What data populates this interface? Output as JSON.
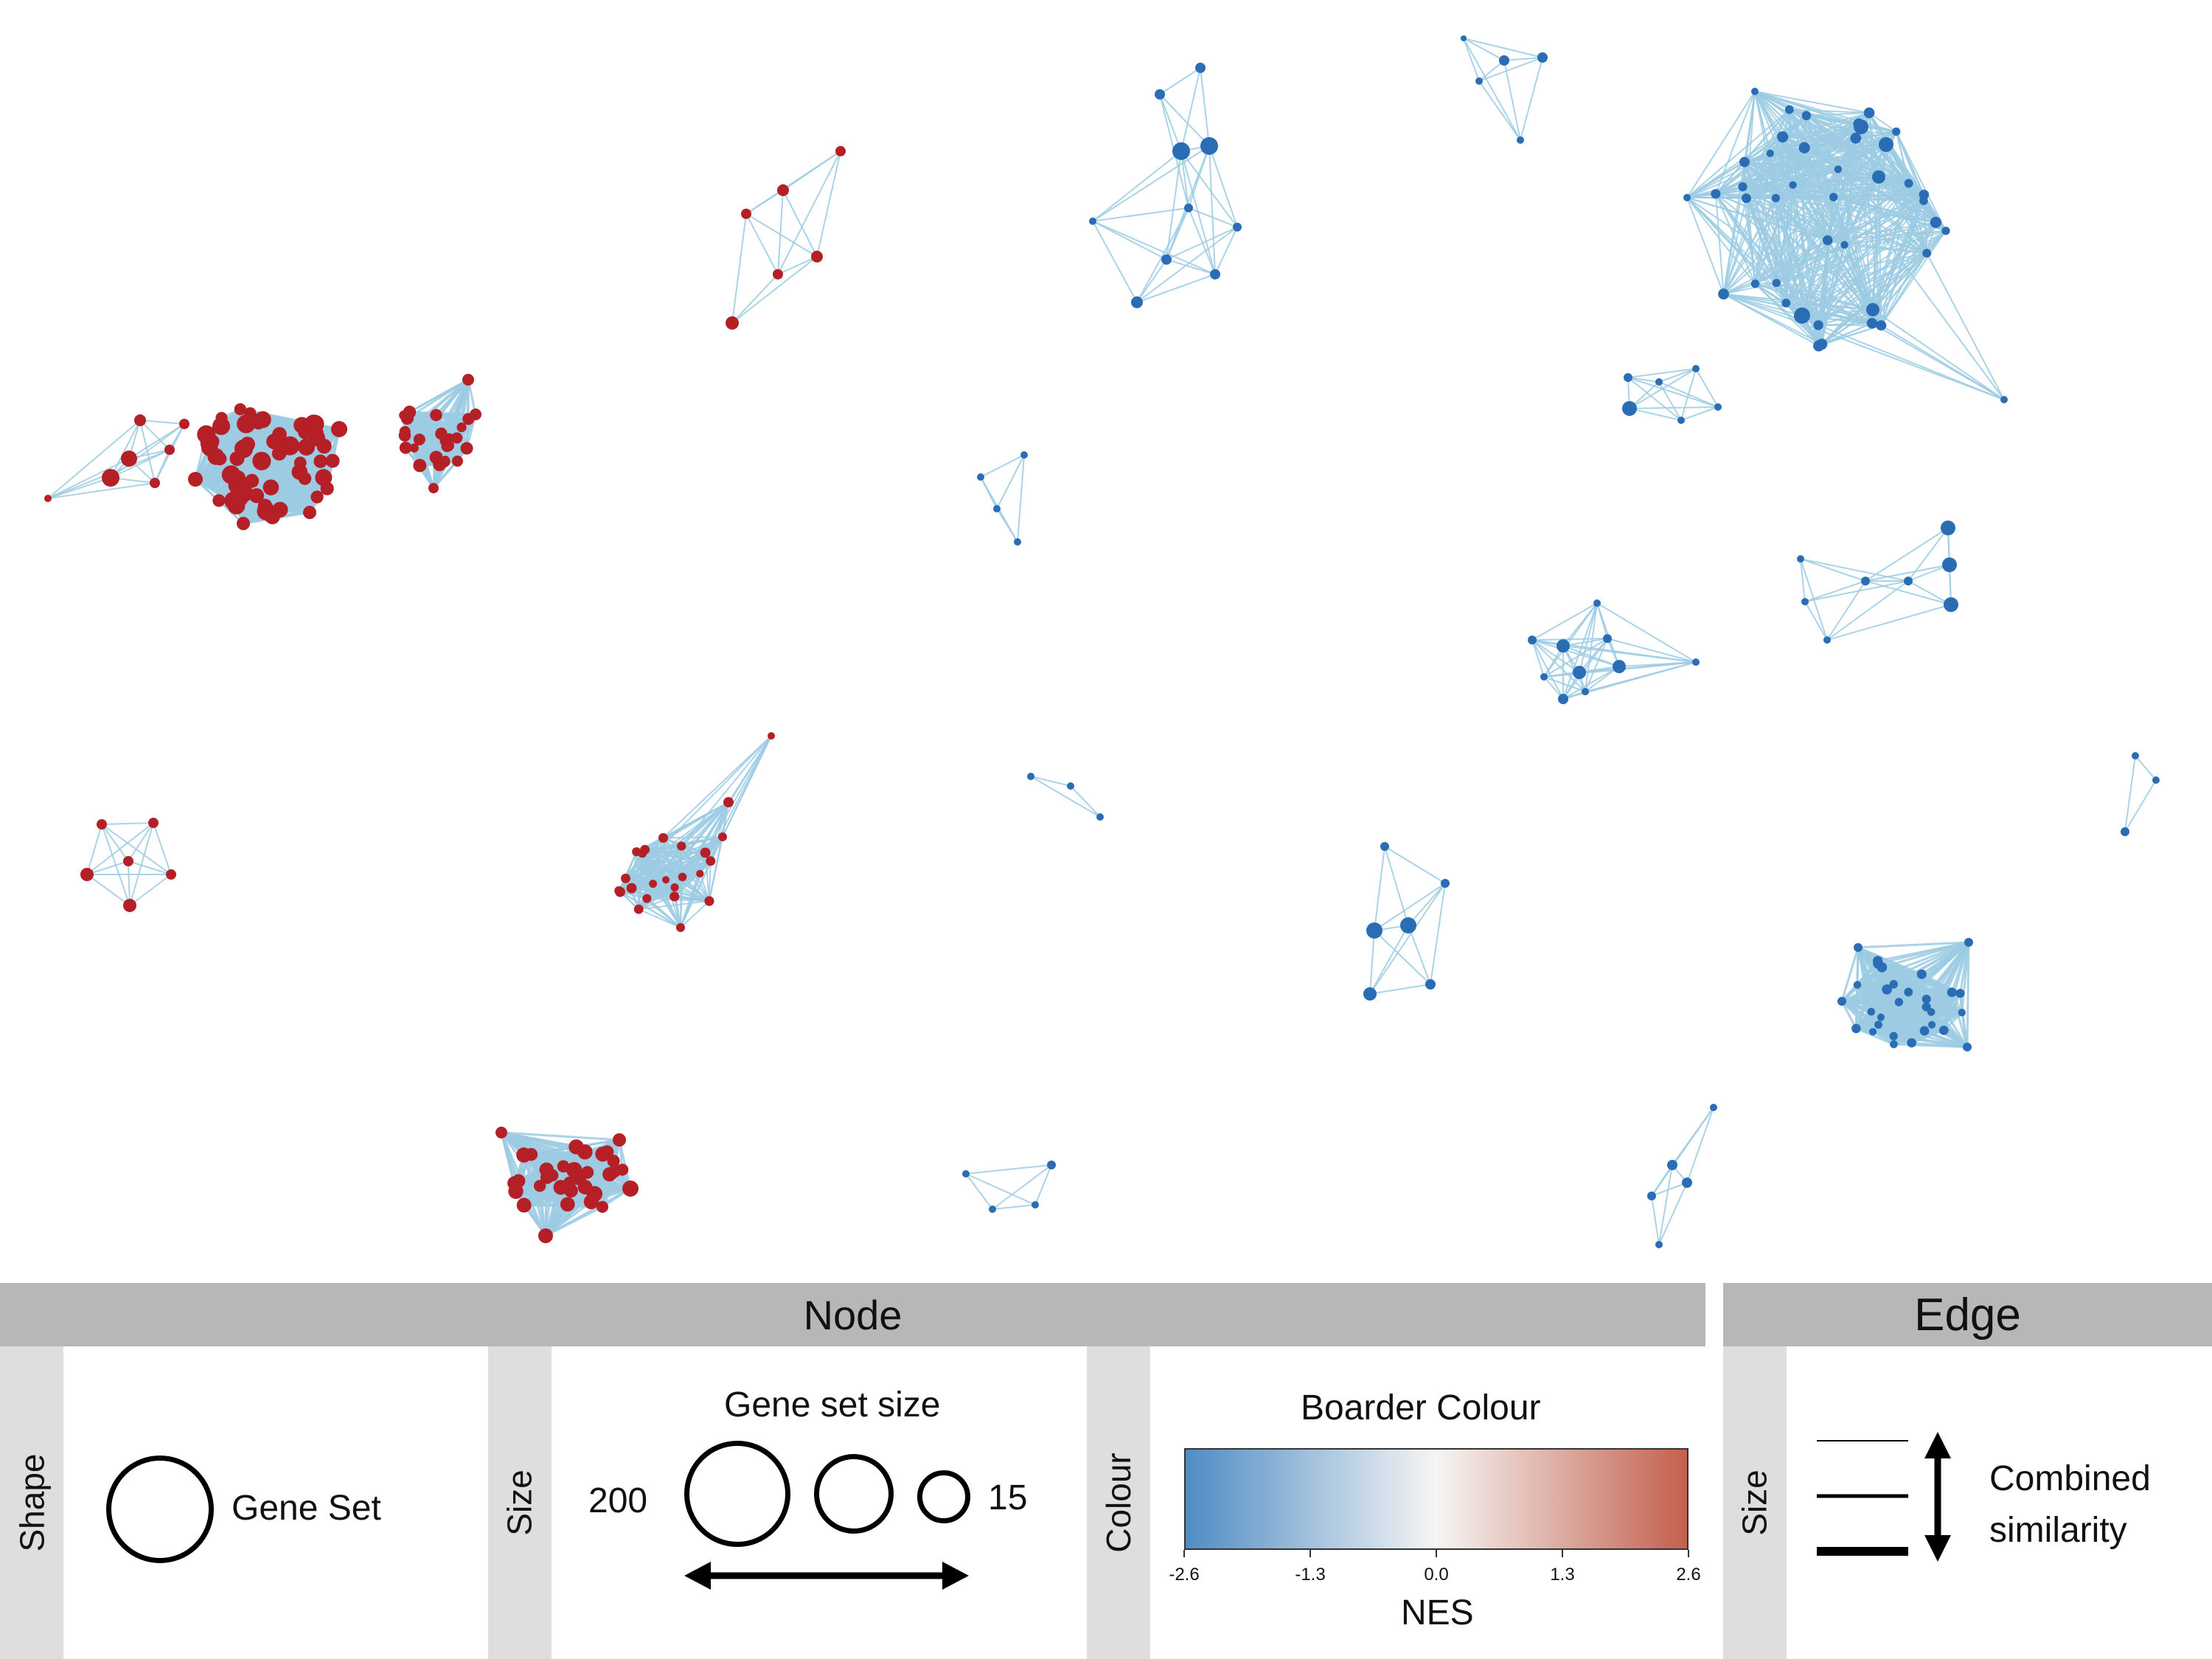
{
  "legend": {
    "node_header": "Node",
    "edge_header": "Edge",
    "shape_side": "Shape",
    "shape_label": "Gene Set",
    "size_side": "Size",
    "size_title": "Gene set size",
    "size_max": "200",
    "size_min": "15",
    "colour_side": "Colour",
    "colour_title": "Boarder Colour",
    "colour_axis_label": "NES",
    "colour_ticks": [
      "-2.6",
      "-1.3",
      "0.0",
      "1.3",
      "2.6"
    ],
    "edge_size_side": "Size",
    "edge_label_line1": "Combined",
    "edge_label_line2": "similarity"
  },
  "colors": {
    "negative_nes": "#2a6db5",
    "positive_nes": "#b51f26",
    "edge": "#9ccbe3",
    "header_bg": "#b7b7b7",
    "side_bg": "#dedede",
    "gradient_low": "#4f8cc4",
    "gradient_mid": "#f6f6f4",
    "gradient_high": "#c3604e"
  }
}
